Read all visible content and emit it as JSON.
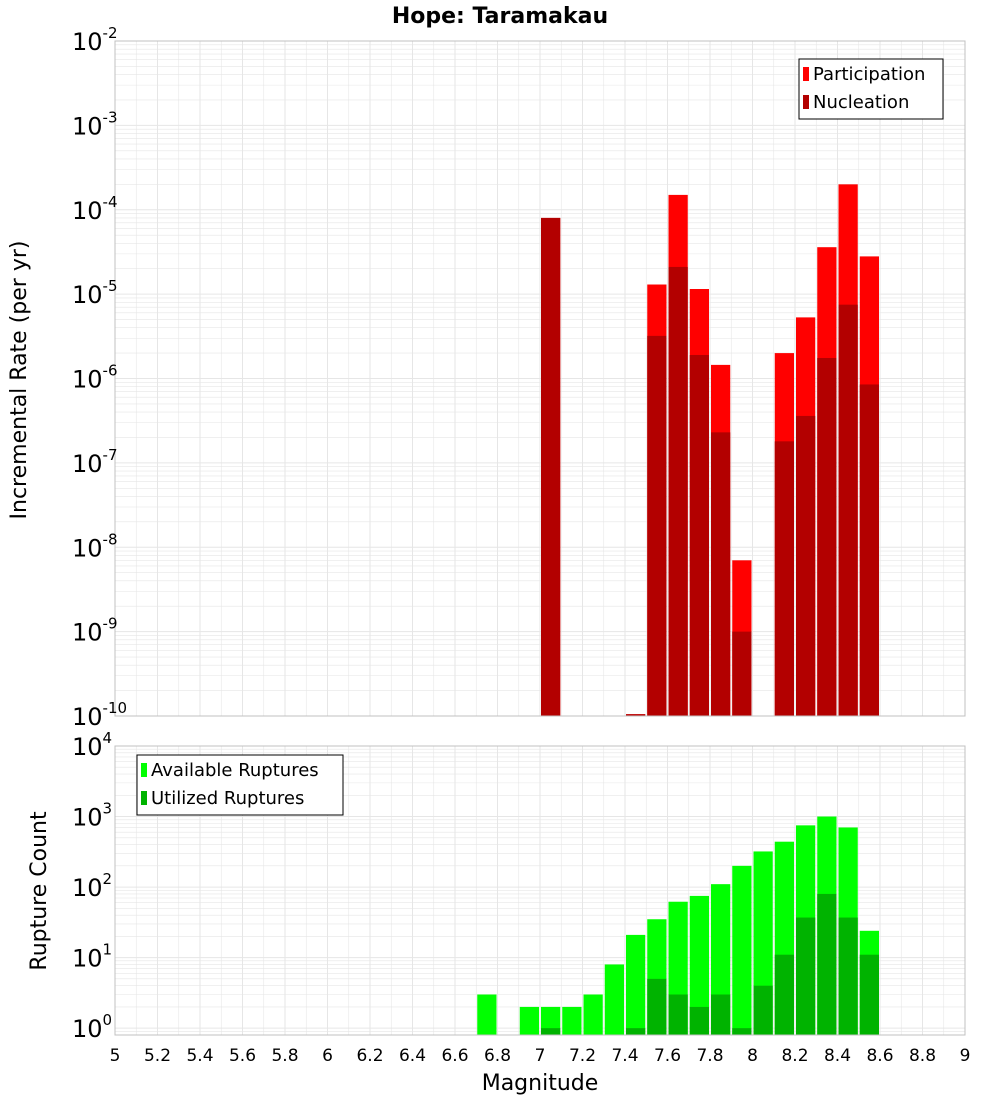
{
  "title": "Hope: Taramakau",
  "colors": {
    "participation": "#ff0000",
    "nucleation": "#b30000",
    "available": "#00ff00",
    "utilized": "#00b300",
    "grid": "#e6e6e6",
    "frame": "#c0c0c0"
  },
  "chart_data": [
    {
      "type": "bar",
      "name": "rate-panel",
      "ylabel": "Incremental Rate (per yr)",
      "xlim": [
        5,
        9
      ],
      "yscale": "log",
      "ylim": [
        1e-10,
        0.01
      ],
      "yticks": [
        {
          "base": "10",
          "exp": "-10",
          "value": 1e-10
        },
        {
          "base": "10",
          "exp": "-9",
          "value": 1e-09
        },
        {
          "base": "10",
          "exp": "-8",
          "value": 1e-08
        },
        {
          "base": "10",
          "exp": "-7",
          "value": 1e-07
        },
        {
          "base": "10",
          "exp": "-6",
          "value": 1e-06
        },
        {
          "base": "10",
          "exp": "-5",
          "value": 1e-05
        },
        {
          "base": "10",
          "exp": "-4",
          "value": 0.0001
        },
        {
          "base": "10",
          "exp": "-3",
          "value": 0.001
        },
        {
          "base": "10",
          "exp": "-2",
          "value": 0.01
        }
      ],
      "grid": true,
      "legend_position": "top-right",
      "bin_width": 0.1,
      "x": [
        7.05,
        7.45,
        7.55,
        7.65,
        7.75,
        7.85,
        7.95,
        8.15,
        8.25,
        8.35,
        8.45,
        8.55
      ],
      "series": [
        {
          "name": "Participation",
          "color_key": "participation",
          "values": [
            8e-05,
            1.05e-10,
            1.3e-05,
            0.00015,
            1.15e-05,
            1.45e-06,
            7e-09,
            2e-06,
            5.3e-06,
            3.6e-05,
            0.0002,
            2.8e-05
          ]
        },
        {
          "name": "Nucleation",
          "color_key": "nucleation",
          "values": [
            8e-05,
            1.05e-10,
            3.2e-06,
            2.1e-05,
            1.9e-06,
            2.3e-07,
            1e-09,
            1.8e-07,
            3.6e-07,
            1.75e-06,
            7.5e-06,
            8.5e-07
          ]
        }
      ]
    },
    {
      "type": "bar",
      "name": "count-panel",
      "ylabel": "Rupture Count",
      "xlabel": "Magnitude",
      "xlim": [
        5,
        9
      ],
      "xticks": [
        "5",
        "5.2",
        "5.4",
        "5.6",
        "5.8",
        "6",
        "6.2",
        "6.4",
        "6.6",
        "6.8",
        "7",
        "7.2",
        "7.4",
        "7.6",
        "7.8",
        "8",
        "8.2",
        "8.4",
        "8.6",
        "8.8",
        "9"
      ],
      "yscale": "log",
      "ylim": [
        0.8,
        10000
      ],
      "yticks": [
        {
          "base": "10",
          "exp": "0",
          "value": 1
        },
        {
          "base": "10",
          "exp": "1",
          "value": 10
        },
        {
          "base": "10",
          "exp": "2",
          "value": 100
        },
        {
          "base": "10",
          "exp": "3",
          "value": 1000
        },
        {
          "base": "10",
          "exp": "4",
          "value": 10000
        }
      ],
      "grid": true,
      "legend_position": "top-left",
      "bin_width": 0.1,
      "x": [
        6.75,
        6.95,
        7.05,
        7.15,
        7.25,
        7.35,
        7.45,
        7.55,
        7.65,
        7.75,
        7.85,
        7.95,
        8.05,
        8.15,
        8.25,
        8.35,
        8.45,
        8.55
      ],
      "series": [
        {
          "name": "Available Ruptures",
          "color_key": "available",
          "values": [
            3,
            2,
            2,
            2,
            3,
            8,
            21,
            35,
            62,
            75,
            110,
            200,
            320,
            440,
            750,
            1000,
            700,
            24
          ]
        },
        {
          "name": "Utilized Ruptures",
          "color_key": "utilized",
          "values": [
            0,
            0,
            1,
            0,
            0,
            0,
            1,
            5,
            3,
            2,
            3,
            1,
            4,
            11,
            37,
            80,
            37,
            11
          ]
        }
      ]
    }
  ]
}
